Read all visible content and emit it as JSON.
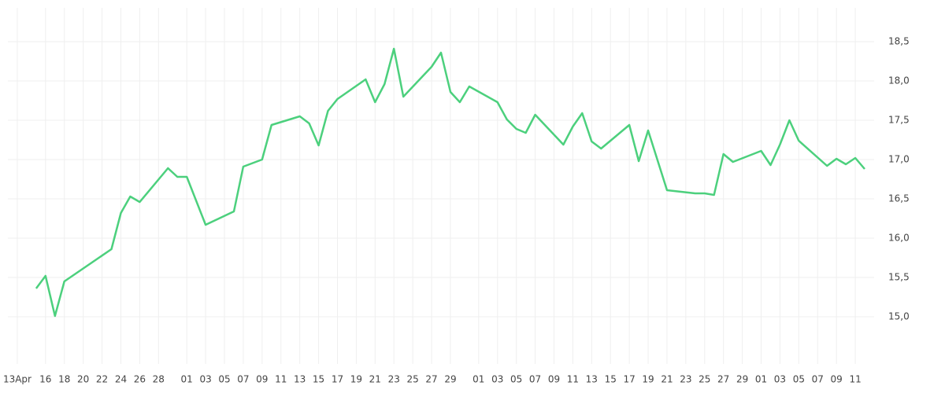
{
  "chart_data": {
    "type": "line",
    "color": "#4cd07d",
    "grid": true,
    "x": [
      "Apr 15",
      "Apr 16",
      "Apr 17",
      "Apr 18",
      "Apr 23",
      "Apr 24",
      "Apr 25",
      "Apr 26",
      "Apr 29",
      "Apr 30",
      "May 1",
      "May 3",
      "May 6",
      "May 7",
      "May 9",
      "May 10",
      "May 13",
      "May 14",
      "May 15",
      "May 16",
      "May 17",
      "May 20",
      "May 21",
      "May 22",
      "May 23",
      "May 24",
      "May 27",
      "May 28",
      "May 29",
      "May 30",
      "May 31",
      "Jun 3",
      "Jun 4",
      "Jun 5",
      "Jun 6",
      "Jun 7",
      "Jun 10",
      "Jun 11",
      "Jun 12",
      "Jun 13",
      "Jun 14",
      "Jun 17",
      "Jun 18",
      "Jun 19",
      "Jun 21",
      "Jun 24",
      "Jun 25",
      "Jun 26",
      "Jun 27",
      "Jun 28",
      "Jul 1",
      "Jul 2",
      "Jul 3",
      "Jul 4",
      "Jul 5",
      "Jul 8",
      "Jul 9",
      "Jul 10",
      "Jul 11",
      "Jul 12"
    ],
    "values": [
      15.36,
      15.52,
      15.01,
      15.45,
      15.86,
      16.32,
      16.53,
      16.46,
      16.89,
      16.78,
      16.78,
      16.17,
      16.34,
      16.91,
      17.0,
      17.44,
      17.55,
      17.46,
      17.18,
      17.62,
      17.77,
      18.02,
      17.73,
      17.96,
      18.41,
      17.8,
      18.18,
      18.36,
      17.86,
      17.73,
      17.93,
      17.73,
      17.51,
      17.39,
      17.34,
      17.57,
      17.19,
      17.42,
      17.59,
      17.23,
      17.14,
      17.44,
      16.98,
      17.37,
      16.61,
      16.57,
      16.57,
      16.55,
      17.07,
      16.97,
      17.11,
      16.93,
      17.19,
      17.5,
      17.24,
      16.92,
      17.01,
      16.94,
      17.02,
      16.88
    ],
    "xlim": [
      "Apr 12",
      "Jul 13"
    ],
    "xticks": [
      {
        "value": "Apr 13",
        "label": "13Apr"
      },
      {
        "value": "Apr 16",
        "label": "16"
      },
      {
        "value": "Apr 18",
        "label": "18"
      },
      {
        "value": "Apr 20",
        "label": "20"
      },
      {
        "value": "Apr 22",
        "label": "22"
      },
      {
        "value": "Apr 24",
        "label": "24"
      },
      {
        "value": "Apr 26",
        "label": "26"
      },
      {
        "value": "Apr 28",
        "label": "28"
      },
      {
        "value": "May 1",
        "label": "01"
      },
      {
        "value": "May 3",
        "label": "03"
      },
      {
        "value": "May 5",
        "label": "05"
      },
      {
        "value": "May 7",
        "label": "07"
      },
      {
        "value": "May 9",
        "label": "09"
      },
      {
        "value": "May 11",
        "label": "11"
      },
      {
        "value": "May 13",
        "label": "13"
      },
      {
        "value": "May 15",
        "label": "15"
      },
      {
        "value": "May 17",
        "label": "17"
      },
      {
        "value": "May 19",
        "label": "19"
      },
      {
        "value": "May 21",
        "label": "21"
      },
      {
        "value": "May 23",
        "label": "23"
      },
      {
        "value": "May 25",
        "label": "25"
      },
      {
        "value": "May 27",
        "label": "27"
      },
      {
        "value": "May 29",
        "label": "29"
      },
      {
        "value": "Jun 1",
        "label": "01"
      },
      {
        "value": "Jun 3",
        "label": "03"
      },
      {
        "value": "Jun 5",
        "label": "05"
      },
      {
        "value": "Jun 7",
        "label": "07"
      },
      {
        "value": "Jun 9",
        "label": "09"
      },
      {
        "value": "Jun 11",
        "label": "11"
      },
      {
        "value": "Jun 13",
        "label": "13"
      },
      {
        "value": "Jun 15",
        "label": "15"
      },
      {
        "value": "Jun 17",
        "label": "17"
      },
      {
        "value": "Jun 19",
        "label": "19"
      },
      {
        "value": "Jun 21",
        "label": "21"
      },
      {
        "value": "Jun 23",
        "label": "23"
      },
      {
        "value": "Jun 25",
        "label": "25"
      },
      {
        "value": "Jun 27",
        "label": "27"
      },
      {
        "value": "Jun 29",
        "label": "29"
      },
      {
        "value": "Jul 1",
        "label": "01"
      },
      {
        "value": "Jul 3",
        "label": "03"
      },
      {
        "value": "Jul 5",
        "label": "05"
      },
      {
        "value": "Jul 7",
        "label": "07"
      },
      {
        "value": "Jul 9",
        "label": "09"
      },
      {
        "value": "Jul 11",
        "label": "11"
      }
    ],
    "ylim": [
      14.4,
      18.9
    ],
    "yticks": [
      {
        "value": 15,
        "label": "15,0"
      },
      {
        "value": 15.5,
        "label": "15,5"
      },
      {
        "value": 16,
        "label": "16,0"
      },
      {
        "value": 16.5,
        "label": "16,5"
      },
      {
        "value": 17,
        "label": "17,0"
      },
      {
        "value": 17.5,
        "label": "17,5"
      },
      {
        "value": 18,
        "label": "18,0"
      },
      {
        "value": 18.5,
        "label": "18,5"
      }
    ]
  }
}
